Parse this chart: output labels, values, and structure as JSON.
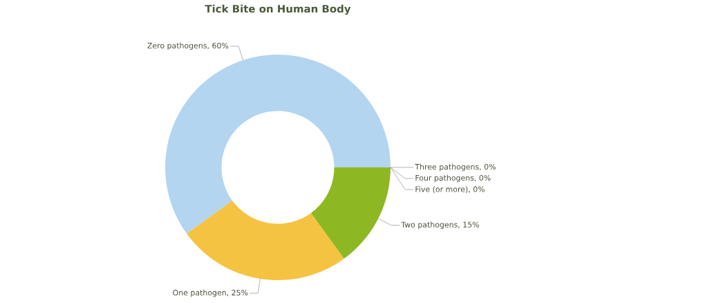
{
  "chart_data": {
    "type": "donut",
    "title": "Tick Bite on Human Body",
    "categories": [
      "Zero pathogens",
      "One pathogen",
      "Two pathogens",
      "Three pathogens",
      "Four pathogens",
      "Five (or more)"
    ],
    "values": [
      60,
      25,
      15,
      0,
      0,
      0
    ],
    "value_labels": [
      ", 60%",
      ", 25%",
      ", 15%",
      ", 0%",
      ", 0%",
      ", 0%"
    ],
    "colors": [
      "#b3d5ef",
      "#f5c342",
      "#8db822",
      "#6e8f1a",
      "#6e8f1a",
      "#6e8f1a"
    ]
  }
}
